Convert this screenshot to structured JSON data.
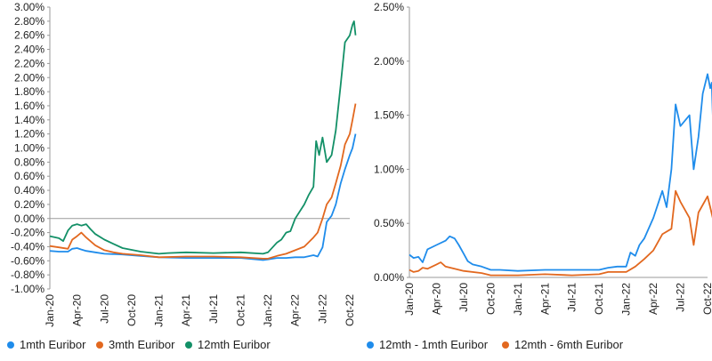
{
  "chart_data": [
    {
      "type": "line",
      "x_tick_labels": [
        "Jan-20",
        "Apr-20",
        "Jul-20",
        "Oct-20",
        "Jan-21",
        "Apr-21",
        "Jul-21",
        "Oct-21",
        "Jan-22",
        "Apr-22",
        "Jul-22",
        "Oct-22"
      ],
      "x_range": [
        "2020-01",
        "2022-10"
      ],
      "y_tick_labels": [
        "3.00%",
        "2.80%",
        "2.60%",
        "2.40%",
        "2.20%",
        "2.00%",
        "1.80%",
        "1.60%",
        "1.40%",
        "1.20%",
        "1.00%",
        "0.80%",
        "0.60%",
        "0.40%",
        "0.20%",
        "0.00%",
        "-0.20%",
        "-0.40%",
        "-0.60%",
        "-0.80%",
        "-1.00%"
      ],
      "ylim": [
        -1.0,
        3.0
      ],
      "unit": "%",
      "zero_line": true,
      "grid": false,
      "legend_position": "bottom",
      "series": [
        {
          "name": "1mth Euribor",
          "color": "#1f8ceb",
          "points": [
            [
              "2020-01-01",
              -0.46
            ],
            [
              "2020-02-01",
              -0.47
            ],
            [
              "2020-03-01",
              -0.47
            ],
            [
              "2020-03-15",
              -0.43
            ],
            [
              "2020-04-01",
              -0.42
            ],
            [
              "2020-04-15",
              -0.44
            ],
            [
              "2020-05-01",
              -0.46
            ],
            [
              "2020-06-01",
              -0.48
            ],
            [
              "2020-07-01",
              -0.5
            ],
            [
              "2020-09-01",
              -0.51
            ],
            [
              "2020-11-01",
              -0.53
            ],
            [
              "2021-01-01",
              -0.55
            ],
            [
              "2021-04-01",
              -0.56
            ],
            [
              "2021-07-01",
              -0.56
            ],
            [
              "2021-10-01",
              -0.56
            ],
            [
              "2021-12-15",
              -0.59
            ],
            [
              "2022-01-01",
              -0.58
            ],
            [
              "2022-02-01",
              -0.56
            ],
            [
              "2022-03-01",
              -0.56
            ],
            [
              "2022-04-01",
              -0.55
            ],
            [
              "2022-05-01",
              -0.55
            ],
            [
              "2022-06-01",
              -0.52
            ],
            [
              "2022-06-15",
              -0.54
            ],
            [
              "2022-07-01",
              -0.41
            ],
            [
              "2022-07-15",
              -0.05
            ],
            [
              "2022-08-01",
              0.04
            ],
            [
              "2022-08-15",
              0.2
            ],
            [
              "2022-09-01",
              0.5
            ],
            [
              "2022-09-15",
              0.7
            ],
            [
              "2022-10-01",
              0.9
            ],
            [
              "2022-10-10",
              1.0
            ],
            [
              "2022-10-20",
              1.2
            ]
          ]
        },
        {
          "name": "3mth Euribor",
          "color": "#e2681f",
          "points": [
            [
              "2020-01-01",
              -0.39
            ],
            [
              "2020-02-01",
              -0.41
            ],
            [
              "2020-03-01",
              -0.43
            ],
            [
              "2020-03-15",
              -0.3
            ],
            [
              "2020-04-01",
              -0.25
            ],
            [
              "2020-04-15",
              -0.2
            ],
            [
              "2020-05-01",
              -0.27
            ],
            [
              "2020-06-01",
              -0.38
            ],
            [
              "2020-07-01",
              -0.45
            ],
            [
              "2020-08-01",
              -0.48
            ],
            [
              "2020-09-01",
              -0.5
            ],
            [
              "2020-11-01",
              -0.52
            ],
            [
              "2021-01-01",
              -0.55
            ],
            [
              "2021-04-01",
              -0.54
            ],
            [
              "2021-07-01",
              -0.54
            ],
            [
              "2021-10-01",
              -0.55
            ],
            [
              "2021-12-15",
              -0.57
            ],
            [
              "2022-01-01",
              -0.57
            ],
            [
              "2022-02-01",
              -0.53
            ],
            [
              "2022-03-01",
              -0.5
            ],
            [
              "2022-04-01",
              -0.45
            ],
            [
              "2022-05-01",
              -0.4
            ],
            [
              "2022-06-01",
              -0.27
            ],
            [
              "2022-06-15",
              -0.2
            ],
            [
              "2022-07-01",
              0.0
            ],
            [
              "2022-07-15",
              0.2
            ],
            [
              "2022-08-01",
              0.3
            ],
            [
              "2022-08-15",
              0.5
            ],
            [
              "2022-09-01",
              0.75
            ],
            [
              "2022-09-15",
              1.05
            ],
            [
              "2022-10-01",
              1.2
            ],
            [
              "2022-10-10",
              1.4
            ],
            [
              "2022-10-20",
              1.63
            ]
          ]
        },
        {
          "name": "12mth Euribor",
          "color": "#139067",
          "points": [
            [
              "2020-01-01",
              -0.25
            ],
            [
              "2020-02-01",
              -0.28
            ],
            [
              "2020-02-15",
              -0.32
            ],
            [
              "2020-03-01",
              -0.17
            ],
            [
              "2020-03-15",
              -0.1
            ],
            [
              "2020-04-01",
              -0.08
            ],
            [
              "2020-04-15",
              -0.1
            ],
            [
              "2020-05-01",
              -0.08
            ],
            [
              "2020-05-15",
              -0.15
            ],
            [
              "2020-06-01",
              -0.22
            ],
            [
              "2020-07-01",
              -0.3
            ],
            [
              "2020-08-01",
              -0.36
            ],
            [
              "2020-09-01",
              -0.42
            ],
            [
              "2020-11-01",
              -0.47
            ],
            [
              "2021-01-01",
              -0.5
            ],
            [
              "2021-02-01",
              -0.49
            ],
            [
              "2021-04-01",
              -0.48
            ],
            [
              "2021-07-01",
              -0.49
            ],
            [
              "2021-10-01",
              -0.48
            ],
            [
              "2021-12-15",
              -0.5
            ],
            [
              "2022-01-01",
              -0.48
            ],
            [
              "2022-02-01",
              -0.34
            ],
            [
              "2022-02-15",
              -0.3
            ],
            [
              "2022-03-01",
              -0.2
            ],
            [
              "2022-03-15",
              -0.18
            ],
            [
              "2022-04-01",
              0.0
            ],
            [
              "2022-05-01",
              0.2
            ],
            [
              "2022-05-15",
              0.33
            ],
            [
              "2022-06-01",
              0.45
            ],
            [
              "2022-06-10",
              1.1
            ],
            [
              "2022-06-20",
              0.9
            ],
            [
              "2022-07-01",
              1.15
            ],
            [
              "2022-07-15",
              0.8
            ],
            [
              "2022-08-01",
              0.9
            ],
            [
              "2022-08-15",
              1.25
            ],
            [
              "2022-09-01",
              1.9
            ],
            [
              "2022-09-15",
              2.5
            ],
            [
              "2022-10-01",
              2.6
            ],
            [
              "2022-10-10",
              2.75
            ],
            [
              "2022-10-15",
              2.8
            ],
            [
              "2022-10-20",
              2.6
            ]
          ]
        }
      ]
    },
    {
      "type": "line",
      "x_tick_labels": [
        "Jan-20",
        "Apr-20",
        "Jul-20",
        "Oct-20",
        "Jan-21",
        "Apr-21",
        "Jul-21",
        "Oct-21",
        "Jan-22",
        "Apr-22",
        "Jul-22",
        "Oct-22"
      ],
      "x_range": [
        "2020-01",
        "2022-10"
      ],
      "y_tick_labels": [
        "2.50%",
        "2.00%",
        "1.50%",
        "1.00%",
        "0.50%",
        "0.00%"
      ],
      "ylim": [
        0,
        2.5
      ],
      "unit": "%",
      "grid": false,
      "legend_position": "bottom",
      "series": [
        {
          "name": "12mth - 1mth Euribor",
          "color": "#1f8ceb",
          "points": [
            [
              "2020-01-01",
              0.21
            ],
            [
              "2020-01-15",
              0.18
            ],
            [
              "2020-02-01",
              0.19
            ],
            [
              "2020-02-15",
              0.14
            ],
            [
              "2020-03-01",
              0.26
            ],
            [
              "2020-04-01",
              0.3
            ],
            [
              "2020-05-01",
              0.34
            ],
            [
              "2020-05-15",
              0.38
            ],
            [
              "2020-06-01",
              0.36
            ],
            [
              "2020-06-15",
              0.3
            ],
            [
              "2020-07-01",
              0.22
            ],
            [
              "2020-07-15",
              0.15
            ],
            [
              "2020-08-01",
              0.12
            ],
            [
              "2020-09-01",
              0.1
            ],
            [
              "2020-10-01",
              0.07
            ],
            [
              "2020-11-01",
              0.07
            ],
            [
              "2021-01-01",
              0.06
            ],
            [
              "2021-04-01",
              0.07
            ],
            [
              "2021-07-01",
              0.07
            ],
            [
              "2021-10-01",
              0.07
            ],
            [
              "2021-11-01",
              0.09
            ],
            [
              "2021-12-01",
              0.1
            ],
            [
              "2022-01-01",
              0.1
            ],
            [
              "2022-01-15",
              0.23
            ],
            [
              "2022-02-01",
              0.2
            ],
            [
              "2022-02-15",
              0.3
            ],
            [
              "2022-03-01",
              0.36
            ],
            [
              "2022-04-01",
              0.55
            ],
            [
              "2022-05-01",
              0.8
            ],
            [
              "2022-05-15",
              0.65
            ],
            [
              "2022-06-01",
              1.0
            ],
            [
              "2022-06-15",
              1.6
            ],
            [
              "2022-07-01",
              1.4
            ],
            [
              "2022-08-01",
              1.5
            ],
            [
              "2022-08-15",
              1.0
            ],
            [
              "2022-09-01",
              1.3
            ],
            [
              "2022-09-15",
              1.7
            ],
            [
              "2022-10-01",
              1.88
            ],
            [
              "2022-10-10",
              1.75
            ],
            [
              "2022-10-15",
              1.8
            ],
            [
              "2022-10-20",
              1.37
            ]
          ]
        },
        {
          "name": "12mth - 6mth Euribor",
          "color": "#e2681f",
          "points": [
            [
              "2020-01-01",
              0.07
            ],
            [
              "2020-01-15",
              0.05
            ],
            [
              "2020-02-01",
              0.06
            ],
            [
              "2020-02-15",
              0.09
            ],
            [
              "2020-03-01",
              0.08
            ],
            [
              "2020-04-01",
              0.12
            ],
            [
              "2020-04-15",
              0.14
            ],
            [
              "2020-05-01",
              0.1
            ],
            [
              "2020-06-01",
              0.08
            ],
            [
              "2020-07-01",
              0.06
            ],
            [
              "2020-09-01",
              0.04
            ],
            [
              "2020-10-01",
              0.02
            ],
            [
              "2021-01-01",
              0.02
            ],
            [
              "2021-04-01",
              0.03
            ],
            [
              "2021-07-01",
              0.02
            ],
            [
              "2021-10-01",
              0.03
            ],
            [
              "2021-11-01",
              0.05
            ],
            [
              "2022-01-01",
              0.05
            ],
            [
              "2022-02-01",
              0.1
            ],
            [
              "2022-03-01",
              0.17
            ],
            [
              "2022-04-01",
              0.25
            ],
            [
              "2022-05-01",
              0.4
            ],
            [
              "2022-06-01",
              0.45
            ],
            [
              "2022-06-15",
              0.8
            ],
            [
              "2022-07-01",
              0.7
            ],
            [
              "2022-08-01",
              0.55
            ],
            [
              "2022-08-15",
              0.3
            ],
            [
              "2022-09-01",
              0.6
            ],
            [
              "2022-10-01",
              0.75
            ],
            [
              "2022-10-10",
              0.65
            ],
            [
              "2022-10-20",
              0.53
            ]
          ]
        }
      ]
    }
  ]
}
